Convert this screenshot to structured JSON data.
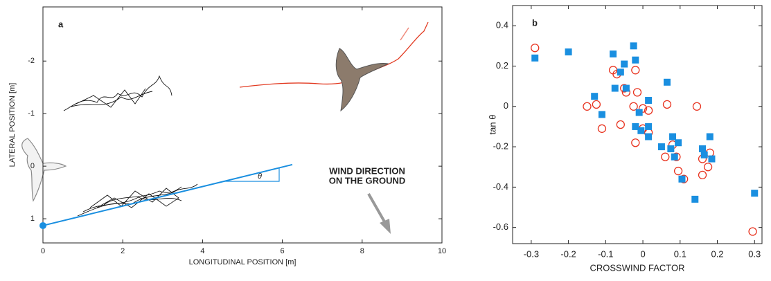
{
  "chart_data": [
    {
      "type": "line",
      "panel_label": "a",
      "x_label": "LONGITUDINAL POSITION [m]",
      "y_label": "LATERAL POSITION [m]",
      "angle_label": "θ",
      "annotation": [
        "WIND DIRECTION",
        "ON THE GROUND"
      ],
      "xlim": [
        0,
        10
      ],
      "xticks": [
        0,
        2,
        4,
        6,
        8,
        10
      ],
      "ylim": [
        1.46,
        -3.03
      ],
      "yticks": [
        1,
        0,
        -1,
        -2
      ],
      "series": [
        {
          "color": "#1a8fe0",
          "x": [
            0,
            6.25
          ],
          "values": [
            1.13,
            -0.03
          ]
        }
      ]
    },
    {
      "type": "scatter",
      "panel_label": "b",
      "x_label": "CROSSWIND FACTOR",
      "y_label": "tan θ",
      "xlim": [
        -0.35,
        0.32
      ],
      "xticks": [
        -0.3,
        -0.2,
        -0.1,
        0,
        0.1,
        0.2,
        0.3
      ],
      "ylim": [
        -0.68,
        0.5
      ],
      "yticks": [
        -0.6,
        -0.4,
        -0.2,
        0,
        0.2,
        0.4
      ],
      "series": [
        {
          "color": "#e8321e",
          "marker": "circle-open",
          "x": [
            -0.29,
            -0.15,
            -0.125,
            -0.11,
            -0.08,
            -0.07,
            -0.06,
            -0.05,
            -0.045,
            -0.02,
            -0.025,
            -0.015,
            -0.02,
            0.0,
            0.0,
            0.015,
            0.015,
            0.06,
            0.065,
            0.08,
            0.09,
            0.095,
            0.11,
            0.145,
            0.16,
            0.16,
            0.175,
            0.18,
            0.295
          ],
          "values": [
            0.29,
            0.0,
            0.01,
            -0.11,
            0.18,
            0.16,
            -0.09,
            0.09,
            0.07,
            0.18,
            0.0,
            0.07,
            -0.18,
            -0.11,
            -0.01,
            -0.02,
            -0.13,
            -0.25,
            0.01,
            -0.19,
            -0.25,
            -0.32,
            -0.36,
            0.0,
            -0.26,
            -0.34,
            -0.3,
            -0.23,
            -0.62
          ]
        },
        {
          "color": "#1a8fe0",
          "marker": "square",
          "x": [
            -0.29,
            -0.2,
            -0.13,
            -0.11,
            -0.08,
            -0.075,
            -0.06,
            -0.05,
            -0.045,
            -0.025,
            -0.02,
            -0.02,
            -0.01,
            -0.005,
            0.015,
            0.015,
            0.015,
            0.05,
            0.065,
            0.075,
            0.08,
            0.085,
            0.095,
            0.105,
            0.14,
            0.16,
            0.165,
            0.18,
            0.185,
            0.3
          ],
          "values": [
            0.24,
            0.27,
            0.05,
            -0.04,
            0.26,
            0.09,
            0.17,
            0.21,
            0.09,
            0.3,
            0.23,
            -0.1,
            -0.03,
            -0.12,
            0.03,
            -0.1,
            -0.15,
            -0.2,
            0.12,
            -0.21,
            -0.15,
            -0.25,
            -0.18,
            -0.36,
            -0.46,
            -0.21,
            -0.24,
            -0.15,
            -0.26,
            -0.43
          ]
        }
      ]
    }
  ]
}
